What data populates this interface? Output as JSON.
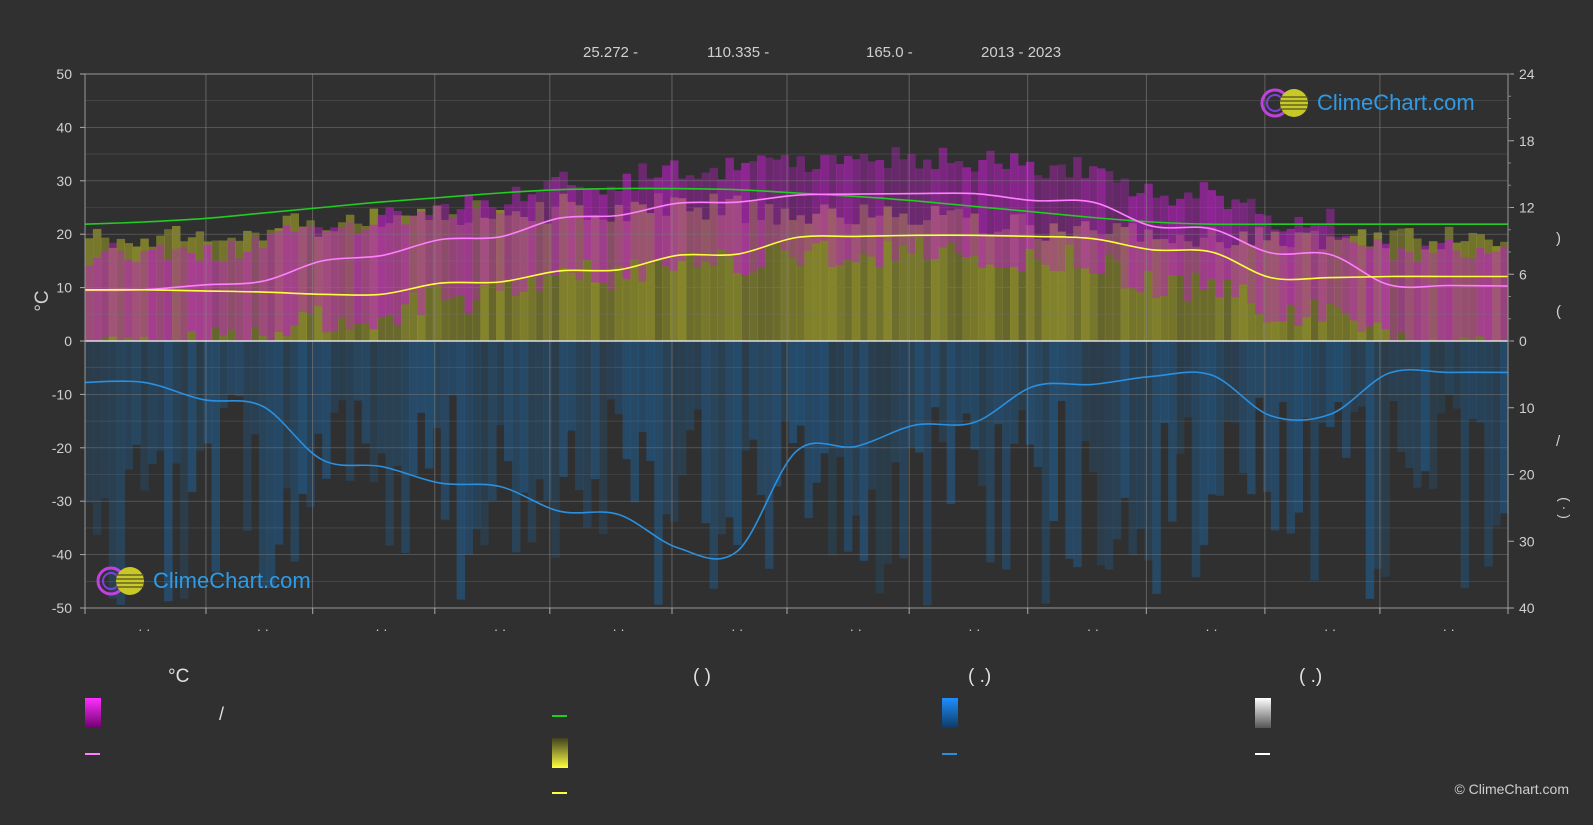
{
  "header": {
    "lat": "25.272 -",
    "lon": "110.335 -",
    "elev": "165.0 -",
    "years": "2013 - 2023"
  },
  "axes": {
    "left_unit": "°C",
    "left_ticks": [
      "50",
      "40",
      "30",
      "20",
      "10",
      "0",
      "-10",
      "-20",
      "-30",
      "-40",
      "-50"
    ],
    "right_top_ticks": [
      "24",
      "18",
      "12",
      "6",
      "0"
    ],
    "right_bottom_ticks": [
      "10",
      "20",
      "30",
      "40"
    ],
    "right_label_upper": ")",
    "right_label_upper2": "(",
    "right_label_lower": "/",
    "right_label_lower2": "(  ·  )",
    "month_ticks": [
      "· ·",
      "· ·",
      "· ·",
      "· ·",
      "· ·",
      "· ·",
      "· ·",
      "· ·",
      "· ·",
      "· ·",
      "· ·",
      "· ·"
    ]
  },
  "logo": {
    "text": "ClimeChart.com"
  },
  "legend": {
    "col1_head": "°C",
    "col2_head": "(            )",
    "col3_head": "(    .)",
    "col4_head": "(    .)",
    "slash": "/"
  },
  "copyright": "© ClimeChart.com",
  "colors": {
    "background": "#303030",
    "temp_range": "#d020d0",
    "temp_mean": "#ff80ff",
    "daylight": "#22cc22",
    "sunshine_band": "#b8b830",
    "sunshine_mean": "#ffff40",
    "precip_band": "#1f5f94",
    "precip_mean": "#2a90e0",
    "grid": "#666666"
  },
  "chart_data": {
    "type": "line",
    "x": [
      0,
      0.5,
      1,
      1.5,
      2,
      2.5,
      3,
      3.5,
      4,
      4.5,
      5,
      5.5,
      6,
      6.5,
      7,
      7.5,
      8,
      8.5,
      9,
      9.5,
      10,
      10.5,
      11,
      11.5,
      12
    ],
    "ylim_left": [
      -50,
      50
    ],
    "ylim_right_sun": [
      0,
      24
    ],
    "ylim_right_precip": [
      0,
      40
    ],
    "series": [
      {
        "key": "daylight",
        "axis": "right_sun",
        "values": [
          10.5,
          10.7,
          11.0,
          11.5,
          12.0,
          12.5,
          12.9,
          13.3,
          13.6,
          13.7,
          13.7,
          13.6,
          13.3,
          13.0,
          12.6,
          12.1,
          11.6,
          11.1,
          10.7,
          10.5,
          10.5,
          10.5,
          10.5,
          10.5,
          10.5
        ]
      },
      {
        "key": "temp_mean",
        "axis": "left",
        "values": [
          9.5,
          9.6,
          10.5,
          11.2,
          15.0,
          16.0,
          19.0,
          19.5,
          23.0,
          23.5,
          25.8,
          26.0,
          27.3,
          27.5,
          27.6,
          27.6,
          26.3,
          26.0,
          21.5,
          21.0,
          16.5,
          16.2,
          10.5,
          10.4,
          10.3
        ]
      },
      {
        "key": "sunshine_mean",
        "axis": "right_sun",
        "values": [
          4.6,
          4.6,
          4.5,
          4.4,
          4.2,
          4.2,
          5.2,
          5.3,
          6.3,
          6.4,
          7.7,
          7.8,
          9.3,
          9.4,
          9.5,
          9.5,
          9.4,
          9.2,
          8.2,
          8.0,
          5.7,
          5.7,
          5.8,
          5.8,
          5.8
        ]
      },
      {
        "key": "precip_mean",
        "axis": "right_precip",
        "values": [
          6.2,
          6.2,
          8.8,
          9.8,
          17.8,
          18.8,
          21.3,
          21.8,
          25.5,
          26.0,
          31.0,
          31.5,
          16.5,
          15.8,
          12.6,
          12.2,
          6.8,
          6.5,
          5.3,
          5.1,
          11.2,
          11.0,
          4.8,
          4.7,
          4.7
        ]
      }
    ]
  }
}
